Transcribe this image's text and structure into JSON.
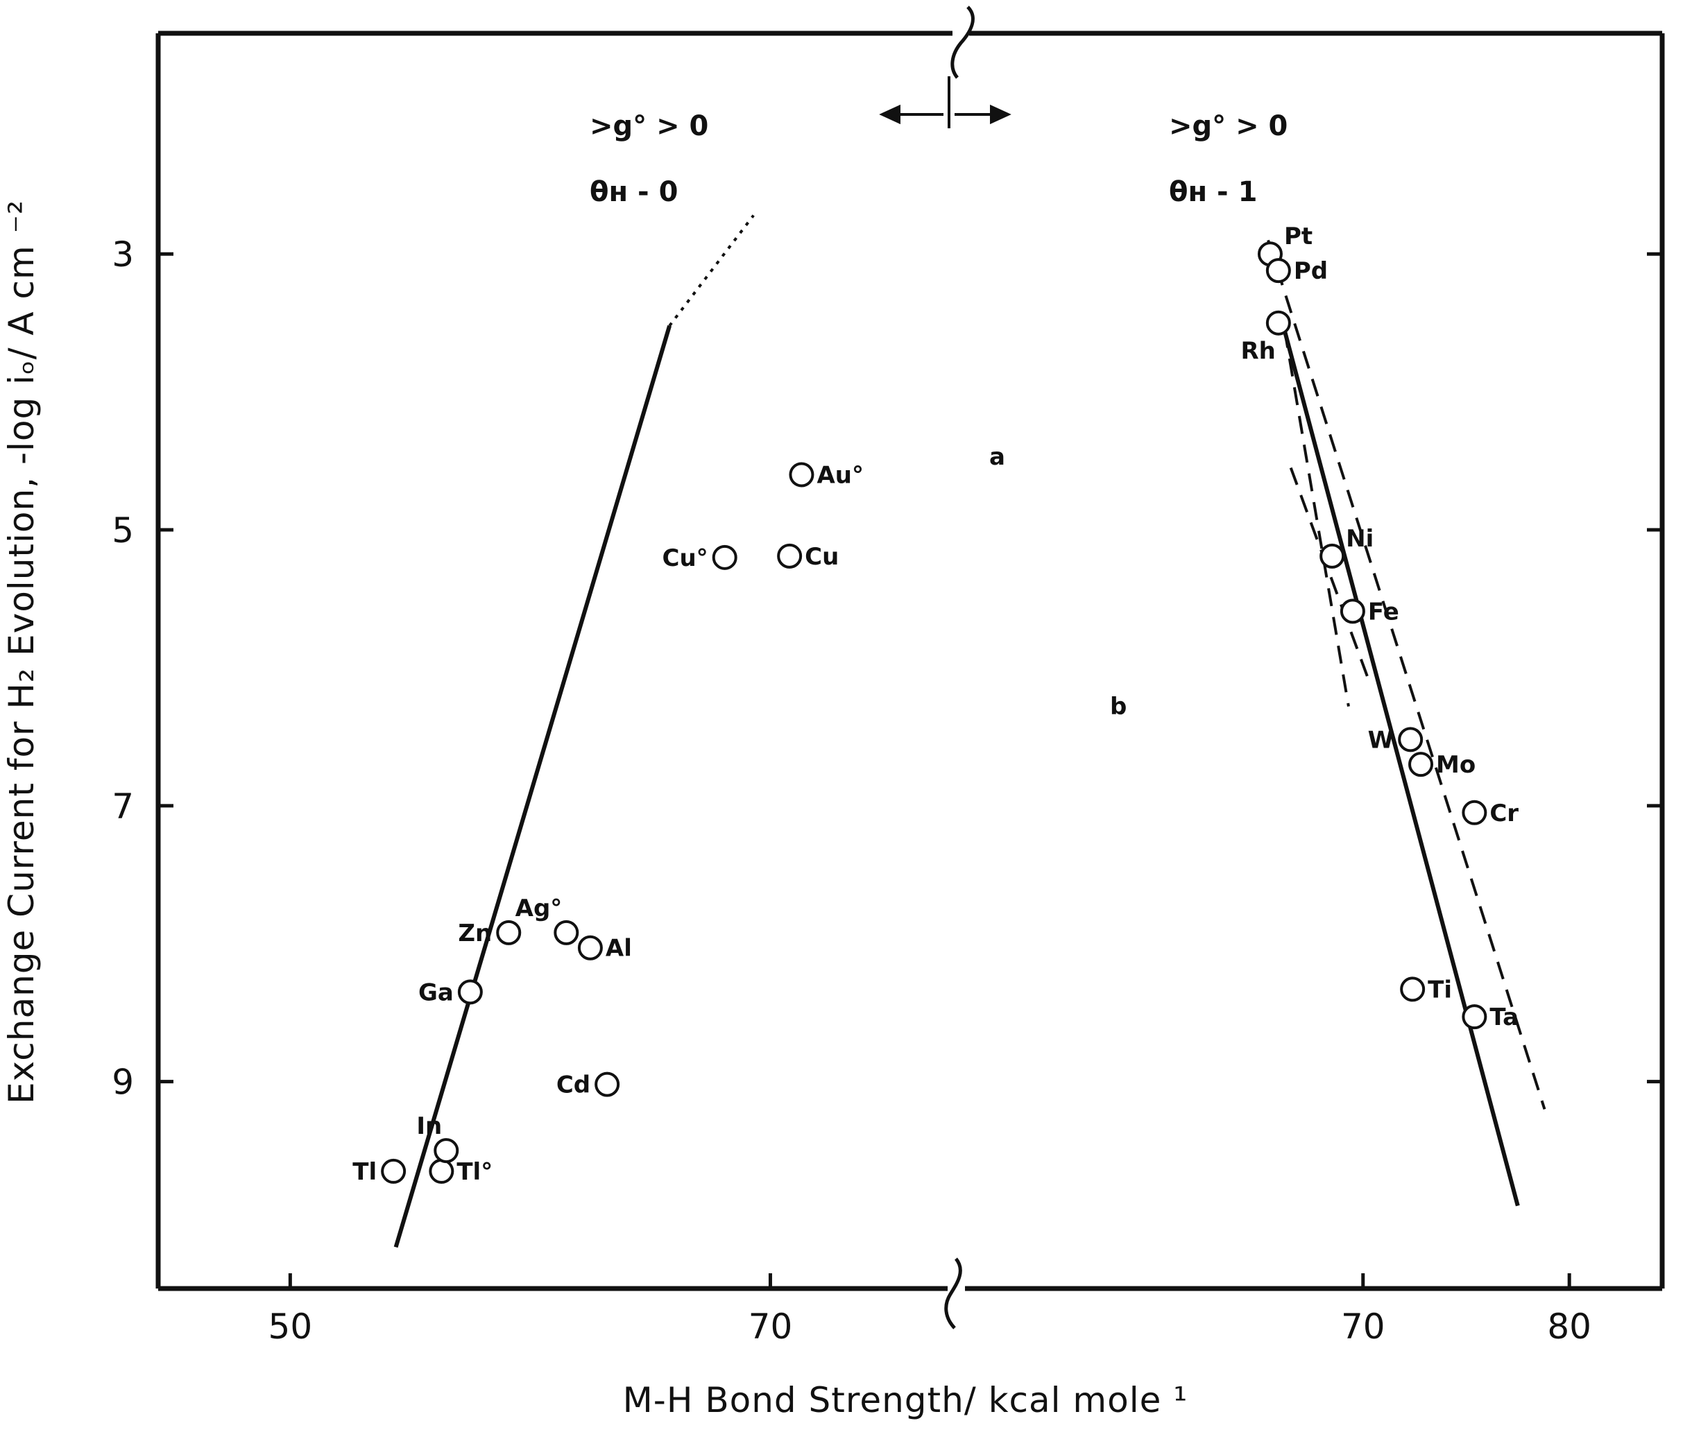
{
  "chart_data": {
    "type": "scatter",
    "xlabel": "M-H Bond Strength/  kcal mole ¹",
    "ylabel": "Exchange Current for H₂ Evolution, -log iₒ/ A cm ⁻²",
    "left_panel": {
      "xlim": [
        44.5,
        77.5
      ],
      "x_ticks": [
        50,
        70
      ],
      "x_tick_labels": [
        "50",
        "70"
      ]
    },
    "right_panel": {
      "xlim": [
        50,
        84.5
      ],
      "x_ticks": [
        70,
        80
      ],
      "x_tick_labels": [
        "70",
        "80"
      ]
    },
    "ylim": [
      1.4,
      10.5
    ],
    "y_reversed": true,
    "y_ticks": [
      3,
      5,
      7,
      9
    ],
    "y_tick_labels": [
      "3",
      "5",
      "7",
      "9"
    ],
    "annotations": {
      "left_top": ">g° > 0",
      "left_bottom": "θʜ - 0",
      "right_top": ">g° > 0",
      "right_bottom": "θʜ - 1",
      "line_a": "a",
      "line_b": "b"
    },
    "points": [
      {
        "label": "Tl",
        "panel": "left",
        "x": 54.3,
        "y": 9.65,
        "label_side": "left"
      },
      {
        "label": "Tl°",
        "panel": "left",
        "x": 56.3,
        "y": 9.65,
        "label_side": "right"
      },
      {
        "label": "In",
        "panel": "left",
        "x": 56.5,
        "y": 9.5,
        "label_side": "topleft"
      },
      {
        "label": "Ga",
        "panel": "left",
        "x": 57.5,
        "y": 8.35,
        "label_side": "left"
      },
      {
        "label": "Zn",
        "panel": "left",
        "x": 59.1,
        "y": 7.92,
        "label_side": "left"
      },
      {
        "label": "Ag°",
        "panel": "left",
        "x": 61.5,
        "y": 7.92,
        "label_side": "topleft"
      },
      {
        "label": "Al",
        "panel": "left",
        "x": 62.5,
        "y": 8.03,
        "label_side": "right"
      },
      {
        "label": "Cd",
        "panel": "left",
        "x": 63.2,
        "y": 9.02,
        "label_side": "left"
      },
      {
        "label": "Cu°",
        "panel": "left",
        "x": 68.1,
        "y": 5.2,
        "label_side": "left"
      },
      {
        "label": "Cu",
        "panel": "left",
        "x": 70.8,
        "y": 5.19,
        "label_side": "right"
      },
      {
        "label": "Au°",
        "panel": "left",
        "x": 71.3,
        "y": 4.6,
        "label_side": "right"
      },
      {
        "label": "Pt",
        "panel": "right",
        "x": 65.5,
        "y": 3.0,
        "label_side": "topright"
      },
      {
        "label": "Pd",
        "panel": "right",
        "x": 65.9,
        "y": 3.12,
        "label_side": "right"
      },
      {
        "label": "Rh",
        "panel": "right",
        "x": 65.9,
        "y": 3.5,
        "label_side": "bottomleft"
      },
      {
        "label": "Ni",
        "panel": "right",
        "x": 68.5,
        "y": 5.19,
        "label_side": "topright"
      },
      {
        "label": "Fe",
        "panel": "right",
        "x": 69.5,
        "y": 5.59,
        "label_side": "right"
      },
      {
        "label": "W",
        "panel": "right",
        "x": 72.3,
        "y": 6.52,
        "label_side": "left"
      },
      {
        "label": "Mo",
        "panel": "right",
        "x": 72.8,
        "y": 6.7,
        "label_side": "right"
      },
      {
        "label": "Cr",
        "panel": "right",
        "x": 75.4,
        "y": 7.05,
        "label_side": "right"
      },
      {
        "label": "Ti",
        "panel": "right",
        "x": 72.4,
        "y": 8.33,
        "label_side": "right"
      },
      {
        "label": "Ta",
        "panel": "right",
        "x": 75.4,
        "y": 8.53,
        "label_side": "right"
      }
    ],
    "lines": [
      {
        "id": "left-solid-line",
        "panel": "left",
        "style": "solid",
        "from": [
          54.4,
          10.2
        ],
        "to": [
          65.8,
          3.52
        ]
      },
      {
        "id": "left-dotted-line",
        "panel": "left",
        "style": "dotted",
        "from": [
          65.8,
          3.52
        ],
        "to": [
          69.3,
          2.72
        ]
      },
      {
        "id": "right-solid-line",
        "panel": "right",
        "style": "solid",
        "from": [
          66.1,
          3.5
        ],
        "to": [
          77.5,
          9.9
        ]
      },
      {
        "id": "right-dashed-line",
        "panel": "right",
        "style": "dashed",
        "from": [
          65.4,
          2.9
        ],
        "to": [
          78.8,
          9.2
        ]
      },
      {
        "id": "line-a-dashed",
        "panel": "right",
        "style": "dashed",
        "from": [
          66.5,
          4.55
        ],
        "to": [
          70.3,
          6.1
        ]
      },
      {
        "id": "line-b-dashed",
        "panel": "right",
        "style": "dashed",
        "from": [
          66.2,
          3.55
        ],
        "to": [
          69.3,
          6.28
        ]
      }
    ]
  }
}
